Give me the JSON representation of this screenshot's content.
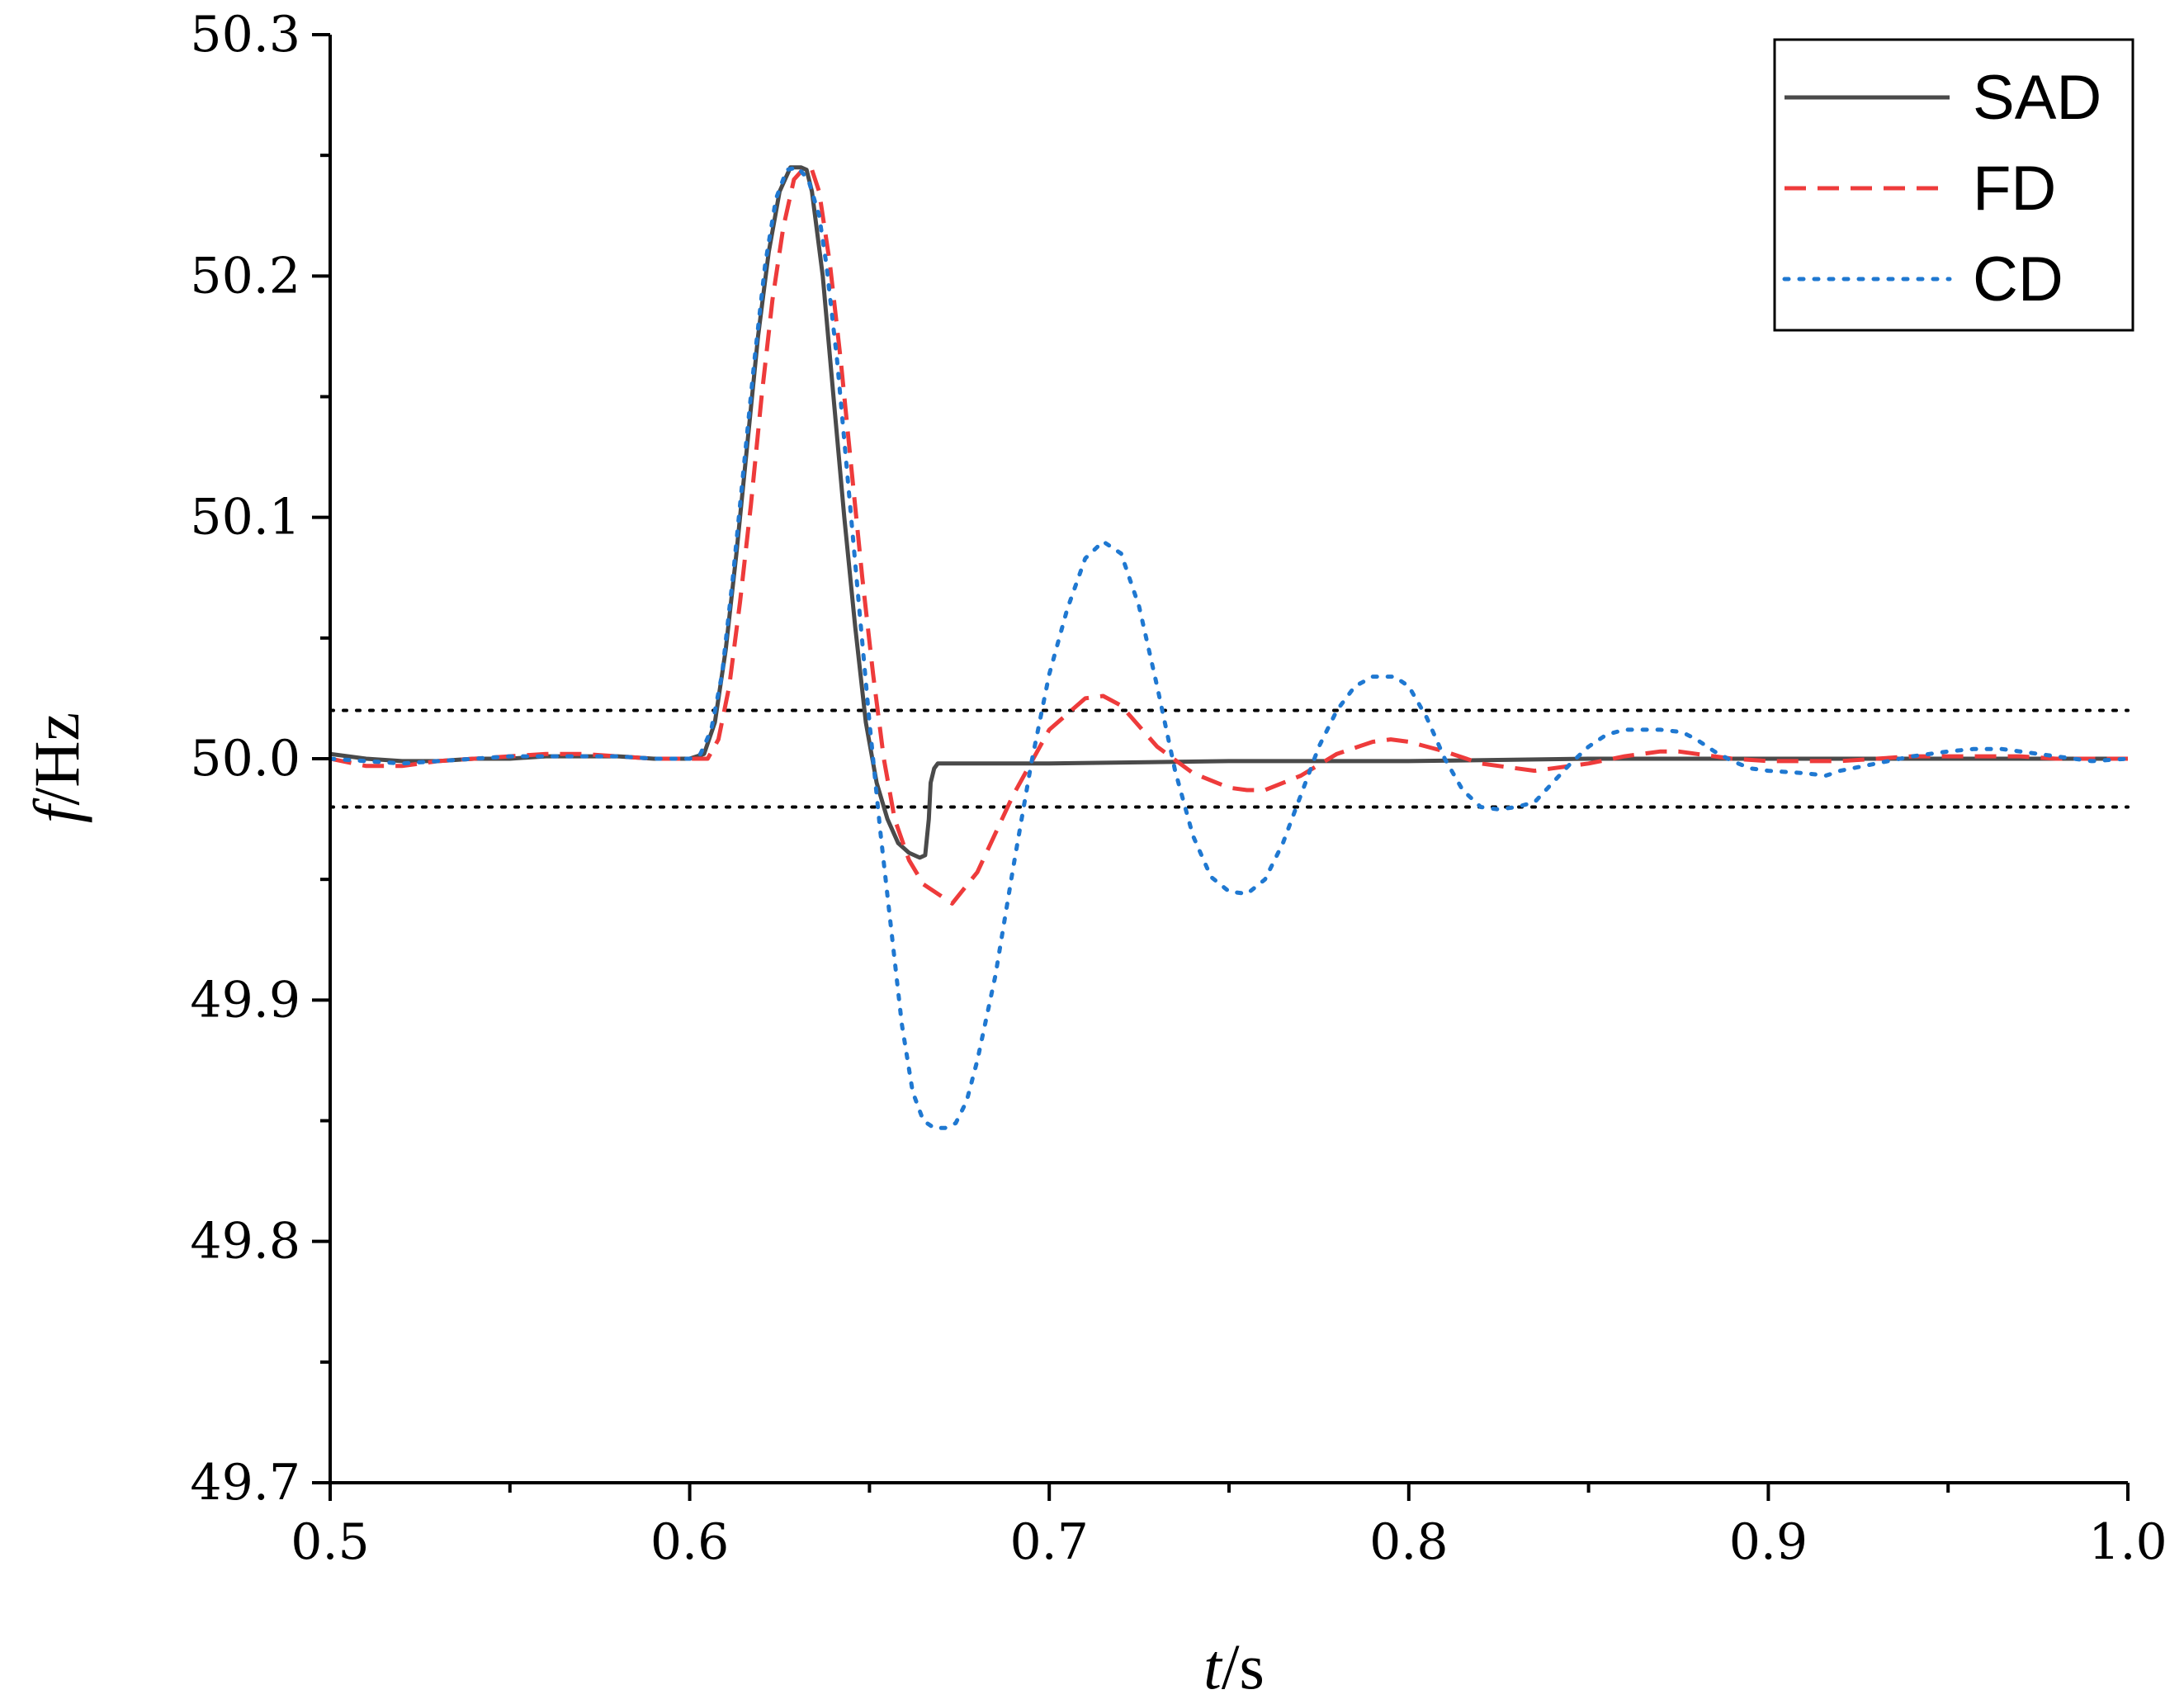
{
  "chart_data": {
    "type": "line",
    "xlabel_var": "t",
    "xlabel_unit": "/s",
    "ylabel_var": "f",
    "ylabel_unit": "/Hz",
    "xlim": [
      0.5,
      1.0
    ],
    "ylim": [
      49.7,
      50.3
    ],
    "x_ticks": [
      "0.5",
      "0.6",
      "0.7",
      "0.8",
      "0.9",
      "1.0"
    ],
    "y_ticks": [
      "49.7",
      "49.8",
      "49.9",
      "50.0",
      "50.1",
      "50.2",
      "50.3"
    ],
    "grid": false,
    "legend_position": "top-right",
    "reference_lines": [
      50.02,
      49.98
    ],
    "series": [
      {
        "name": "SAD",
        "color": "#4a4a4a",
        "style": "solid",
        "x": [
          0.5,
          0.51,
          0.52,
          0.53,
          0.54,
          0.55,
          0.56,
          0.57,
          0.58,
          0.59,
          0.6,
          0.604,
          0.607,
          0.61,
          0.613,
          0.616,
          0.619,
          0.622,
          0.625,
          0.628,
          0.631,
          0.6325,
          0.634,
          0.637,
          0.64,
          0.643,
          0.646,
          0.649,
          0.652,
          0.655,
          0.658,
          0.661,
          0.664,
          0.6655,
          0.6665,
          0.667,
          0.668,
          0.669,
          0.675,
          0.7,
          0.75,
          0.8,
          0.85,
          0.9,
          0.95,
          1.0
        ],
        "y": [
          50.002,
          50.0,
          49.999,
          49.999,
          50.0,
          50.0,
          50.001,
          50.001,
          50.001,
          50.0,
          50.0,
          50.002,
          50.015,
          50.045,
          50.085,
          50.13,
          50.175,
          50.21,
          50.235,
          50.245,
          50.245,
          50.244,
          50.235,
          50.2,
          50.15,
          50.1,
          50.055,
          50.015,
          49.99,
          49.975,
          49.965,
          49.961,
          49.959,
          49.96,
          49.975,
          49.99,
          49.996,
          49.998,
          49.998,
          49.998,
          49.999,
          49.999,
          50.0,
          50.0,
          50.0,
          50.0
        ]
      },
      {
        "name": "FD",
        "color": "#ee3b3b",
        "style": "dashed",
        "x": [
          0.5,
          0.51,
          0.52,
          0.53,
          0.54,
          0.55,
          0.56,
          0.57,
          0.58,
          0.59,
          0.6,
          0.605,
          0.608,
          0.611,
          0.614,
          0.617,
          0.62,
          0.623,
          0.626,
          0.629,
          0.632,
          0.634,
          0.636,
          0.639,
          0.642,
          0.645,
          0.648,
          0.651,
          0.654,
          0.657,
          0.661,
          0.665,
          0.669,
          0.673,
          0.68,
          0.69,
          0.7,
          0.71,
          0.715,
          0.72,
          0.73,
          0.74,
          0.75,
          0.755,
          0.76,
          0.77,
          0.78,
          0.79,
          0.795,
          0.8,
          0.81,
          0.82,
          0.83,
          0.835,
          0.84,
          0.85,
          0.86,
          0.87,
          0.875,
          0.88,
          0.89,
          0.9,
          0.91,
          0.915,
          0.92,
          0.93,
          0.94,
          0.95,
          0.96,
          0.97,
          0.98,
          0.99,
          1.0
        ],
        "y": [
          50.0,
          49.997,
          49.997,
          49.999,
          50.0,
          50.001,
          50.002,
          50.002,
          50.001,
          50.0,
          50.0,
          50.0,
          50.008,
          50.03,
          50.065,
          50.105,
          50.15,
          50.19,
          50.22,
          50.24,
          50.245,
          50.244,
          50.235,
          50.205,
          50.165,
          50.12,
          50.075,
          50.035,
          50.0,
          49.975,
          49.958,
          49.948,
          49.944,
          49.94,
          49.953,
          49.985,
          50.012,
          50.025,
          50.026,
          50.022,
          50.005,
          49.994,
          49.988,
          49.987,
          49.987,
          49.993,
          50.002,
          50.007,
          50.008,
          50.007,
          50.003,
          49.998,
          49.996,
          49.995,
          49.996,
          49.998,
          50.001,
          50.003,
          50.003,
          50.002,
          50.0,
          49.999,
          49.999,
          49.999,
          49.999,
          50.0,
          50.001,
          50.001,
          50.001,
          50.001,
          50.0,
          50.0,
          50.0
        ]
      },
      {
        "name": "CD",
        "color": "#1f78d1",
        "style": "dotted",
        "x": [
          0.5,
          0.51,
          0.52,
          0.53,
          0.54,
          0.55,
          0.56,
          0.57,
          0.58,
          0.59,
          0.6,
          0.603,
          0.606,
          0.609,
          0.612,
          0.615,
          0.618,
          0.621,
          0.624,
          0.627,
          0.63,
          0.633,
          0.636,
          0.638,
          0.641,
          0.644,
          0.647,
          0.65,
          0.653,
          0.656,
          0.659,
          0.662,
          0.665,
          0.668,
          0.671,
          0.674,
          0.677,
          0.68,
          0.685,
          0.69,
          0.695,
          0.7,
          0.705,
          0.71,
          0.715,
          0.72,
          0.725,
          0.73,
          0.735,
          0.74,
          0.745,
          0.75,
          0.755,
          0.76,
          0.765,
          0.77,
          0.775,
          0.78,
          0.785,
          0.79,
          0.796,
          0.8,
          0.805,
          0.81,
          0.815,
          0.82,
          0.825,
          0.83,
          0.835,
          0.84,
          0.845,
          0.85,
          0.855,
          0.86,
          0.865,
          0.87,
          0.876,
          0.88,
          0.885,
          0.89,
          0.895,
          0.9,
          0.91,
          0.916,
          0.92,
          0.93,
          0.94,
          0.95,
          0.957,
          0.965,
          0.97,
          0.98,
          0.99,
          1.0
        ],
        "y": [
          50.0,
          49.999,
          49.998,
          49.999,
          50.0,
          50.001,
          50.001,
          50.001,
          50.001,
          50.0,
          50.0,
          50.002,
          50.012,
          50.035,
          50.075,
          50.12,
          50.165,
          50.205,
          50.232,
          50.244,
          50.245,
          50.24,
          50.225,
          50.205,
          50.165,
          50.115,
          50.065,
          50.015,
          49.97,
          49.93,
          49.89,
          49.862,
          49.85,
          49.847,
          49.847,
          49.849,
          49.858,
          49.875,
          49.91,
          49.955,
          49.998,
          50.035,
          50.062,
          50.083,
          50.09,
          50.085,
          50.063,
          50.03,
          49.995,
          49.968,
          49.951,
          49.945,
          49.944,
          49.95,
          49.965,
          49.985,
          50.005,
          50.02,
          50.03,
          50.034,
          50.034,
          50.03,
          50.017,
          50.0,
          49.987,
          49.98,
          49.979,
          49.98,
          49.982,
          49.99,
          49.998,
          50.005,
          50.01,
          50.012,
          50.012,
          50.012,
          50.011,
          50.008,
          50.003,
          49.999,
          49.996,
          49.995,
          49.994,
          49.993,
          49.995,
          49.998,
          50.001,
          50.003,
          50.004,
          50.004,
          50.003,
          50.001,
          49.999,
          50.0
        ]
      }
    ]
  }
}
